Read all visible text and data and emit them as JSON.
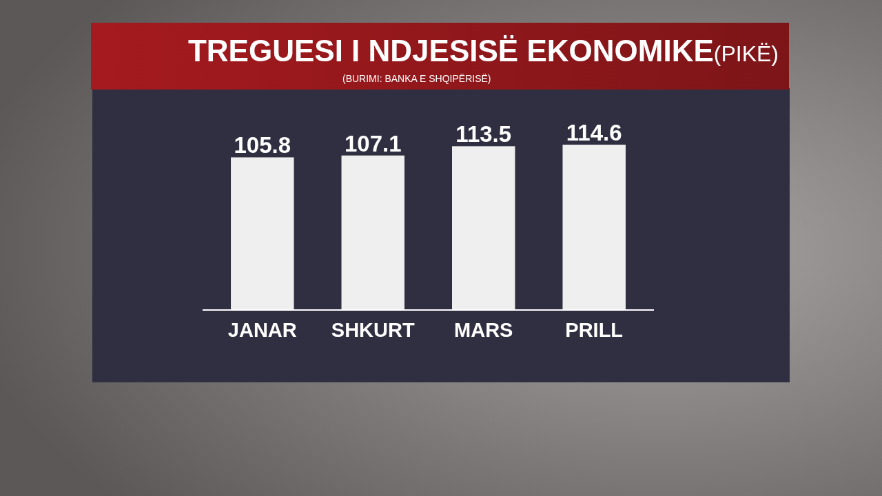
{
  "chart_data": {
    "type": "bar",
    "title": "TREGUESI I NDJESISË EKONOMIKE(PIKË)",
    "annotations": [
      "(BURIMI: BANKA E SHQIPËRISË)"
    ],
    "categories": [
      "JANAR",
      "SHKURT",
      "MARS",
      "PRILL"
    ],
    "values": [
      105.8,
      107.1,
      113.5,
      114.6
    ],
    "color": "#efefef",
    "data_labels": true,
    "tick_labels": "x"
  }
}
